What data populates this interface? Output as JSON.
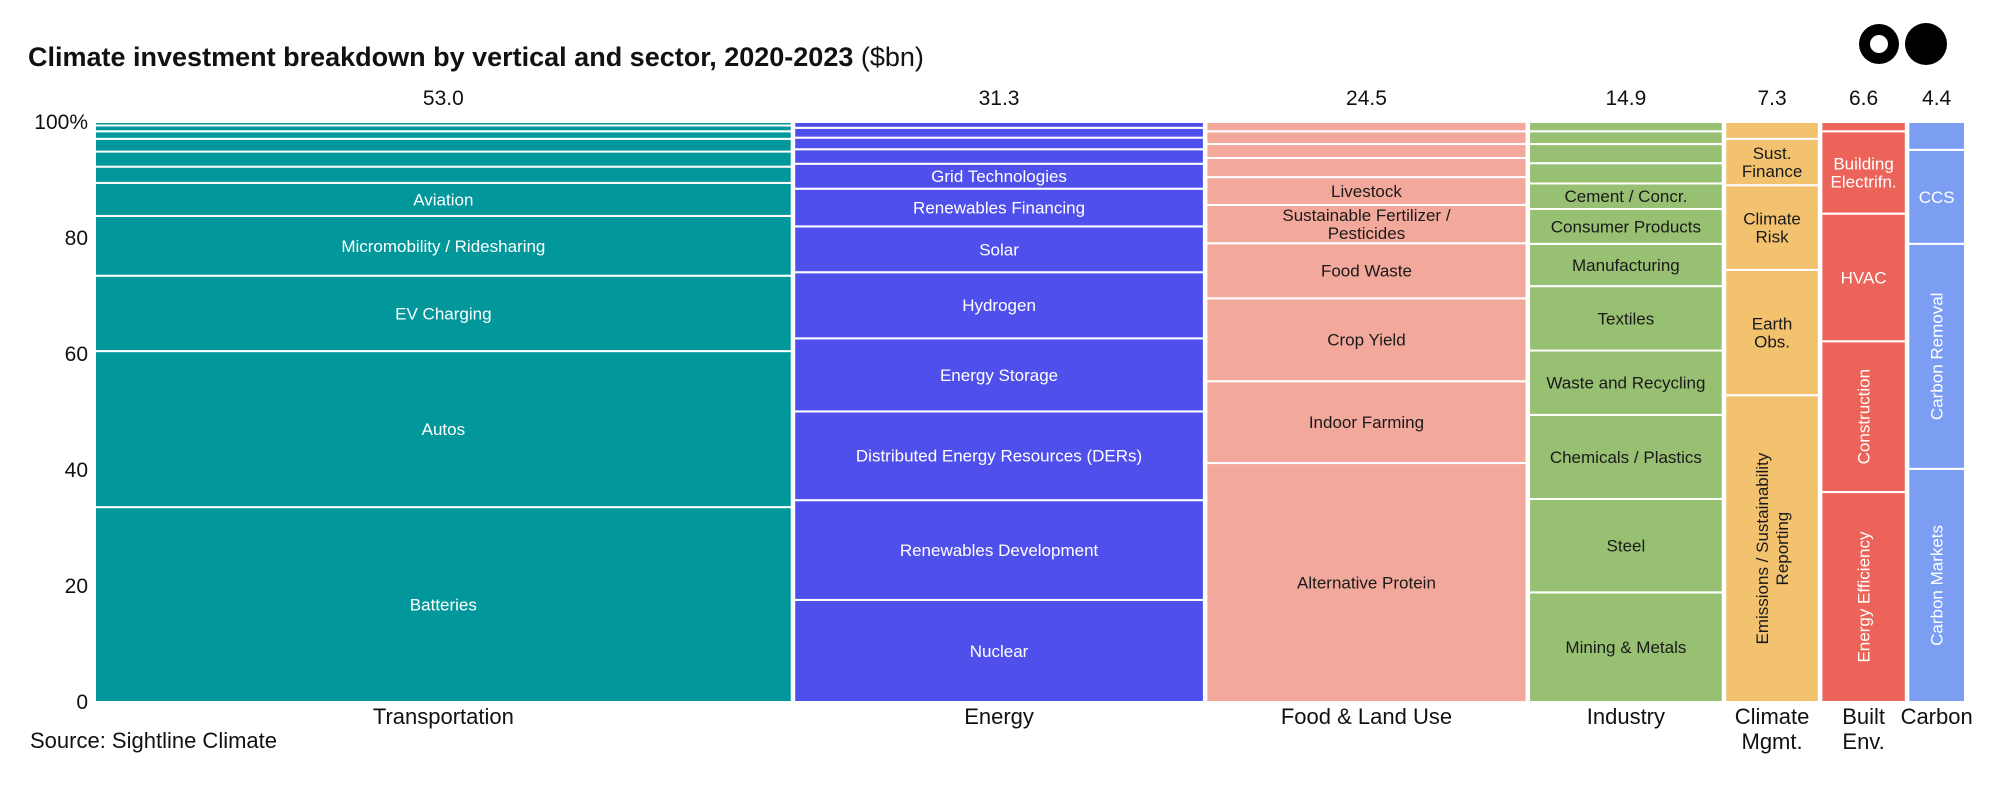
{
  "header": {
    "title": "Climate investment breakdown by vertical and sector, 2020-2023",
    "unit": "($bn)"
  },
  "footer": {
    "source": "Source: Sightline Climate"
  },
  "colors": {
    "transportation": "#02979b",
    "energy": "#4f4fec",
    "food_land_use": "#f3a89c",
    "industry": "#98c072",
    "climate_mgmt": "#f3c26f",
    "built_env": "#ec6459",
    "carbon": "#7b9ef2"
  },
  "chart_data": {
    "type": "bar",
    "subtype": "marimekko",
    "title": "Climate investment breakdown by vertical and sector, 2020-2023",
    "unit": "($bn)",
    "ylim": [
      0,
      100
    ],
    "yticks": [
      "0",
      "20",
      "40",
      "60",
      "80",
      "100%"
    ],
    "grid": false,
    "legend": "none",
    "categories": [
      {
        "name": "Transportation",
        "total": "53.0",
        "color": "#02979b",
        "segments": [
          {
            "label": "Batteries",
            "value": 33.6
          },
          {
            "label": "Autos",
            "value": 26.9
          },
          {
            "label": "EV Charging",
            "value": 13.0
          },
          {
            "label": "Micromobility / Ridesharing",
            "value": 10.3
          },
          {
            "label": "Aviation",
            "value": 5.7
          },
          {
            "label": "",
            "value": 2.8
          },
          {
            "label": "",
            "value": 2.6
          },
          {
            "label": "",
            "value": 2.2
          },
          {
            "label": "",
            "value": 1.3
          },
          {
            "label": "",
            "value": 1.0
          },
          {
            "label": "",
            "value": 0.6
          }
        ]
      },
      {
        "name": "Energy",
        "total": "31.3",
        "color": "#4f4fec",
        "segments": [
          {
            "label": "Nuclear",
            "value": 17.6
          },
          {
            "label": "Renewables Development",
            "value": 17.2
          },
          {
            "label": "Distributed Energy Resources (DERs)",
            "value": 15.3
          },
          {
            "label": "Energy Storage",
            "value": 12.6
          },
          {
            "label": "Hydrogen",
            "value": 11.4
          },
          {
            "label": "Solar",
            "value": 7.9
          },
          {
            "label": "Renewables Financing",
            "value": 6.5
          },
          {
            "label": "Grid Technologies",
            "value": 4.3
          },
          {
            "label": "",
            "value": 2.5
          },
          {
            "label": "",
            "value": 2.0
          },
          {
            "label": "",
            "value": 1.7
          },
          {
            "label": "",
            "value": 1.0
          }
        ]
      },
      {
        "name": "Food & Land Use",
        "total": "24.5",
        "color": "#f3a89c",
        "segments": [
          {
            "label": "Alternative Protein",
            "value": 41.2
          },
          {
            "label": "Indoor Farming",
            "value": 14.1
          },
          {
            "label": "Crop Yield",
            "value": 14.3
          },
          {
            "label": "Food Waste",
            "value": 9.5
          },
          {
            "label": "Sustainable Fertilizer / Pesticides",
            "value": 6.6
          },
          {
            "label": "Livestock",
            "value": 4.8
          },
          {
            "label": "",
            "value": 3.3
          },
          {
            "label": "",
            "value": 2.4
          },
          {
            "label": "",
            "value": 2.2
          },
          {
            "label": "",
            "value": 1.6
          }
        ]
      },
      {
        "name": "Industry",
        "total": "14.9",
        "color": "#98c072",
        "segments": [
          {
            "label": "Mining & Metals",
            "value": 18.9
          },
          {
            "label": "Steel",
            "value": 16.1
          },
          {
            "label": "Chemicals / Plastics",
            "value": 14.5
          },
          {
            "label": "Waste and Recycling",
            "value": 11.1
          },
          {
            "label": "Textiles",
            "value": 11.1
          },
          {
            "label": "Manufacturing",
            "value": 7.3
          },
          {
            "label": "Consumer Products",
            "value": 6.0
          },
          {
            "label": "Cement / Concr.",
            "value": 4.4
          },
          {
            "label": "",
            "value": 3.5
          },
          {
            "label": "",
            "value": 3.3
          },
          {
            "label": "",
            "value": 2.2
          },
          {
            "label": "",
            "value": 1.6
          }
        ]
      },
      {
        "name": "Climate Mgmt.",
        "total": "7.3",
        "color": "#f3c26f",
        "segments": [
          {
            "label": "Emissions / Sustainability Reporting",
            "value": 52.9,
            "vertical": true
          },
          {
            "label": "Earth Obs.",
            "value": 21.6
          },
          {
            "label": "Climate Risk",
            "value": 14.6
          },
          {
            "label": "Sust. Finance",
            "value": 8.0
          },
          {
            "label": "",
            "value": 2.9
          }
        ]
      },
      {
        "name": "Built Env.",
        "total": "6.6",
        "color": "#ec6459",
        "segments": [
          {
            "label": "Energy Efficiency",
            "value": 36.2,
            "vertical": true
          },
          {
            "label": "Construction",
            "value": 26.0,
            "vertical": true
          },
          {
            "label": "HVAC",
            "value": 22.0
          },
          {
            "label": "Building Electrifn.",
            "value": 14.2
          },
          {
            "label": "",
            "value": 1.6
          }
        ]
      },
      {
        "name": "Carbon",
        "total": "4.4",
        "color": "#7b9ef2",
        "segments": [
          {
            "label": "Carbon Markets",
            "value": 40.2,
            "vertical": true
          },
          {
            "label": "Carbon Removal",
            "value": 38.8,
            "vertical": true
          },
          {
            "label": "CCS",
            "value": 16.2
          },
          {
            "label": "",
            "value": 4.8
          }
        ]
      }
    ]
  }
}
